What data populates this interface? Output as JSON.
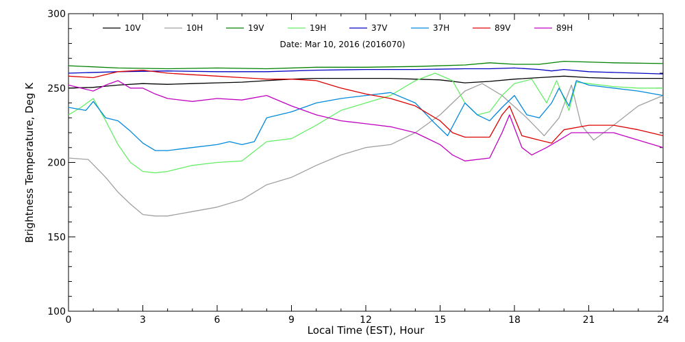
{
  "chart_data": {
    "type": "line",
    "title": "",
    "annotation": "Date: Mar 10, 2016 (2016070)",
    "xlabel": "Local Time (EST), Hour",
    "ylabel": "Brightness Temperature, Deg K",
    "xlim": [
      0,
      24
    ],
    "ylim": [
      100,
      300
    ],
    "xticks": [
      0,
      3,
      6,
      9,
      12,
      15,
      18,
      21,
      24
    ],
    "yticks": [
      100,
      150,
      200,
      250,
      300
    ],
    "grid": false,
    "legend_position": "top",
    "series": [
      {
        "name": "10V",
        "color": "#000000",
        "x": [
          0,
          1,
          2,
          3,
          4,
          5,
          6,
          7,
          8,
          9,
          10,
          11,
          12,
          13,
          14,
          15,
          16,
          17,
          18,
          19,
          20,
          21,
          22,
          23,
          24
        ],
        "y": [
          250,
          250.5,
          252,
          253,
          252.5,
          253,
          253.5,
          254,
          255,
          256,
          256.5,
          256.5,
          256.5,
          256.5,
          256,
          255.5,
          253.5,
          254.5,
          256,
          257,
          258,
          257,
          256.5,
          256.5,
          256.5
        ]
      },
      {
        "name": "10H",
        "color": "#a0a0a0",
        "x": [
          0,
          0.8,
          1.5,
          2,
          2.5,
          3,
          3.5,
          4,
          5,
          6,
          7,
          8,
          9,
          10,
          11,
          12,
          13,
          14,
          15,
          16,
          16.7,
          17.5,
          18.5,
          19.2,
          19.8,
          20.3,
          20.7,
          21.2,
          22,
          23,
          24
        ],
        "y": [
          203,
          202,
          190,
          180,
          172,
          165,
          164,
          164,
          167,
          170,
          175,
          185,
          190,
          198,
          205,
          210,
          212,
          220,
          232,
          248,
          253,
          245,
          230,
          218,
          230,
          252,
          225,
          215,
          225,
          238,
          245
        ]
      },
      {
        "name": "19V",
        "color": "#008000",
        "x": [
          0,
          2,
          4,
          6,
          8,
          10,
          12,
          14,
          16,
          17,
          18,
          19,
          20,
          22,
          24
        ],
        "y": [
          265,
          263.5,
          263,
          263.5,
          263,
          264,
          264,
          264.5,
          265.5,
          267,
          266,
          266,
          268,
          267,
          266.5
        ]
      },
      {
        "name": "19H",
        "color": "#66ee66",
        "x": [
          0,
          0.5,
          1,
          1.5,
          2,
          2.5,
          3,
          3.5,
          4,
          5,
          6,
          7,
          8,
          9,
          10,
          11,
          12,
          13,
          14,
          14.8,
          15.5,
          16,
          16.5,
          17,
          17.5,
          18,
          18.7,
          19.3,
          19.7,
          20.2,
          20.5,
          21,
          22,
          23,
          24
        ],
        "y": [
          232,
          237,
          243,
          228,
          212,
          200,
          194,
          193,
          194,
          198,
          200,
          201,
          214,
          216,
          225,
          235,
          240,
          245,
          255,
          260,
          255,
          240,
          232,
          234,
          245,
          253,
          256,
          240,
          255,
          235,
          254,
          253,
          251,
          250,
          250
        ]
      },
      {
        "name": "37V",
        "color": "#0000c0",
        "x": [
          0,
          2,
          4,
          6,
          8,
          10,
          12,
          14,
          16,
          17,
          18,
          19,
          19.5,
          20,
          21,
          22,
          24
        ],
        "y": [
          260,
          261,
          261.5,
          261,
          261,
          262,
          262.5,
          262.5,
          263,
          263,
          263.5,
          262.5,
          261.5,
          262.5,
          261,
          260.5,
          259.5
        ]
      },
      {
        "name": "37H",
        "color": "#0088dd",
        "x": [
          0,
          0.7,
          1,
          1.5,
          2,
          2.5,
          3,
          3.5,
          4,
          5,
          6,
          6.5,
          7,
          7.5,
          8,
          8.5,
          9,
          10,
          11,
          12,
          13,
          14,
          14.8,
          15.3,
          16,
          16.5,
          17,
          17.5,
          18,
          18.5,
          19,
          19.5,
          19.8,
          20.2,
          20.5,
          21,
          22,
          23,
          24
        ],
        "y": [
          237,
          235,
          241,
          230,
          228,
          221,
          213,
          208,
          208,
          210,
          212,
          214,
          212,
          214,
          230,
          232,
          234,
          240,
          243,
          245,
          247,
          240,
          226,
          218,
          240,
          232,
          228,
          237,
          245,
          232,
          230,
          240,
          250,
          238,
          255,
          252,
          250,
          248,
          245
        ]
      },
      {
        "name": "89V",
        "color": "#dd0000",
        "x": [
          0,
          1,
          2,
          3,
          4,
          5,
          6,
          7,
          8,
          9,
          10,
          11,
          12,
          13,
          14,
          15,
          15.5,
          16,
          17,
          17.5,
          17.8,
          18.3,
          19,
          19.5,
          20,
          21,
          22,
          23,
          24
        ],
        "y": [
          258,
          257,
          261,
          262,
          260,
          259,
          258,
          257,
          256,
          256,
          255,
          250,
          246,
          243,
          238,
          228,
          220,
          217,
          217,
          232,
          238,
          218,
          215,
          213,
          222,
          225,
          225,
          222,
          218
        ]
      },
      {
        "name": "89H",
        "color": "#c000c0",
        "x": [
          0,
          1,
          1.5,
          2,
          2.5,
          3,
          3.5,
          4,
          5,
          6,
          7,
          8,
          9,
          10,
          11,
          12,
          13,
          14,
          15,
          15.5,
          16,
          17,
          17.5,
          17.8,
          18.3,
          18.7,
          19.3,
          19.8,
          20.3,
          21,
          22,
          23,
          24
        ],
        "y": [
          252,
          248,
          252,
          255,
          250,
          250,
          246,
          243,
          241,
          243,
          242,
          245,
          238,
          232,
          228,
          226,
          224,
          220,
          212,
          205,
          201,
          203,
          220,
          232,
          210,
          205,
          210,
          215,
          220,
          220,
          220,
          215,
          210
        ]
      }
    ]
  }
}
